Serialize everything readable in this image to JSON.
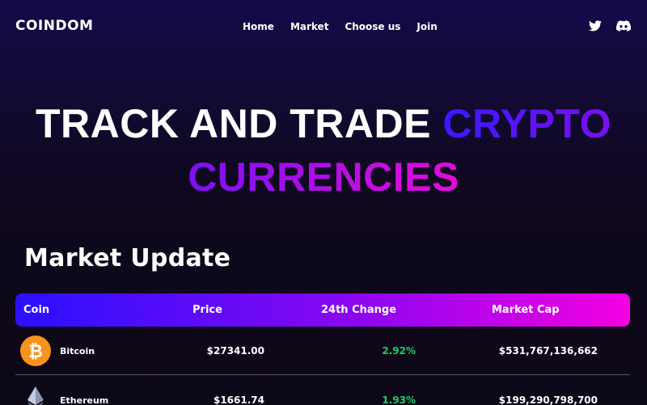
{
  "brand": {
    "logo": "COINDOM"
  },
  "nav": {
    "items": [
      "Home",
      "Market",
      "Choose us",
      "Join"
    ]
  },
  "socials": [
    "twitter-icon",
    "discord-icon"
  ],
  "hero": {
    "part1": "TRACK AND TRADE",
    "part2": "CRYPTO",
    "part3": "CURRENCIES"
  },
  "market": {
    "title": "Market Update",
    "columns": [
      "Coin",
      "Price",
      "24th Change",
      "Market Cap"
    ],
    "rows": [
      {
        "name": "Bitcoin",
        "price": "$27341.00",
        "change": "2.92%",
        "cap": "$531,767,136,662",
        "icon": "bitcoin-icon",
        "color": "#f7931a"
      },
      {
        "name": "Ethereum",
        "price": "$1661.74",
        "change": "1.93%",
        "cap": "$199,290,798,700",
        "icon": "ethereum-icon",
        "color": "#627eea"
      }
    ]
  },
  "colors": {
    "accent_start": "#2a10ff",
    "accent_end": "#f400e2",
    "positive": "#1fcb6e"
  }
}
